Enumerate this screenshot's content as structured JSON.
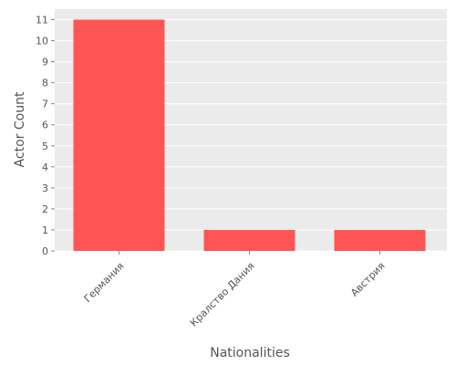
{
  "chart_data": {
    "type": "bar",
    "categories": [
      "Германия",
      "Кралство Дания",
      "Австрия"
    ],
    "values": [
      11,
      1,
      1
    ],
    "xlabel": "Nationalities",
    "ylabel": "Actor Count",
    "ylim": [
      0,
      11.5
    ],
    "yticks": [
      0,
      1,
      2,
      3,
      4,
      5,
      6,
      7,
      8,
      9,
      10,
      11
    ],
    "grid": true,
    "legend": "none",
    "colors": {
      "bar": "#ff5555",
      "plot_background": "#ebebeb",
      "grid": "#ffffff",
      "text": "#555555"
    }
  }
}
